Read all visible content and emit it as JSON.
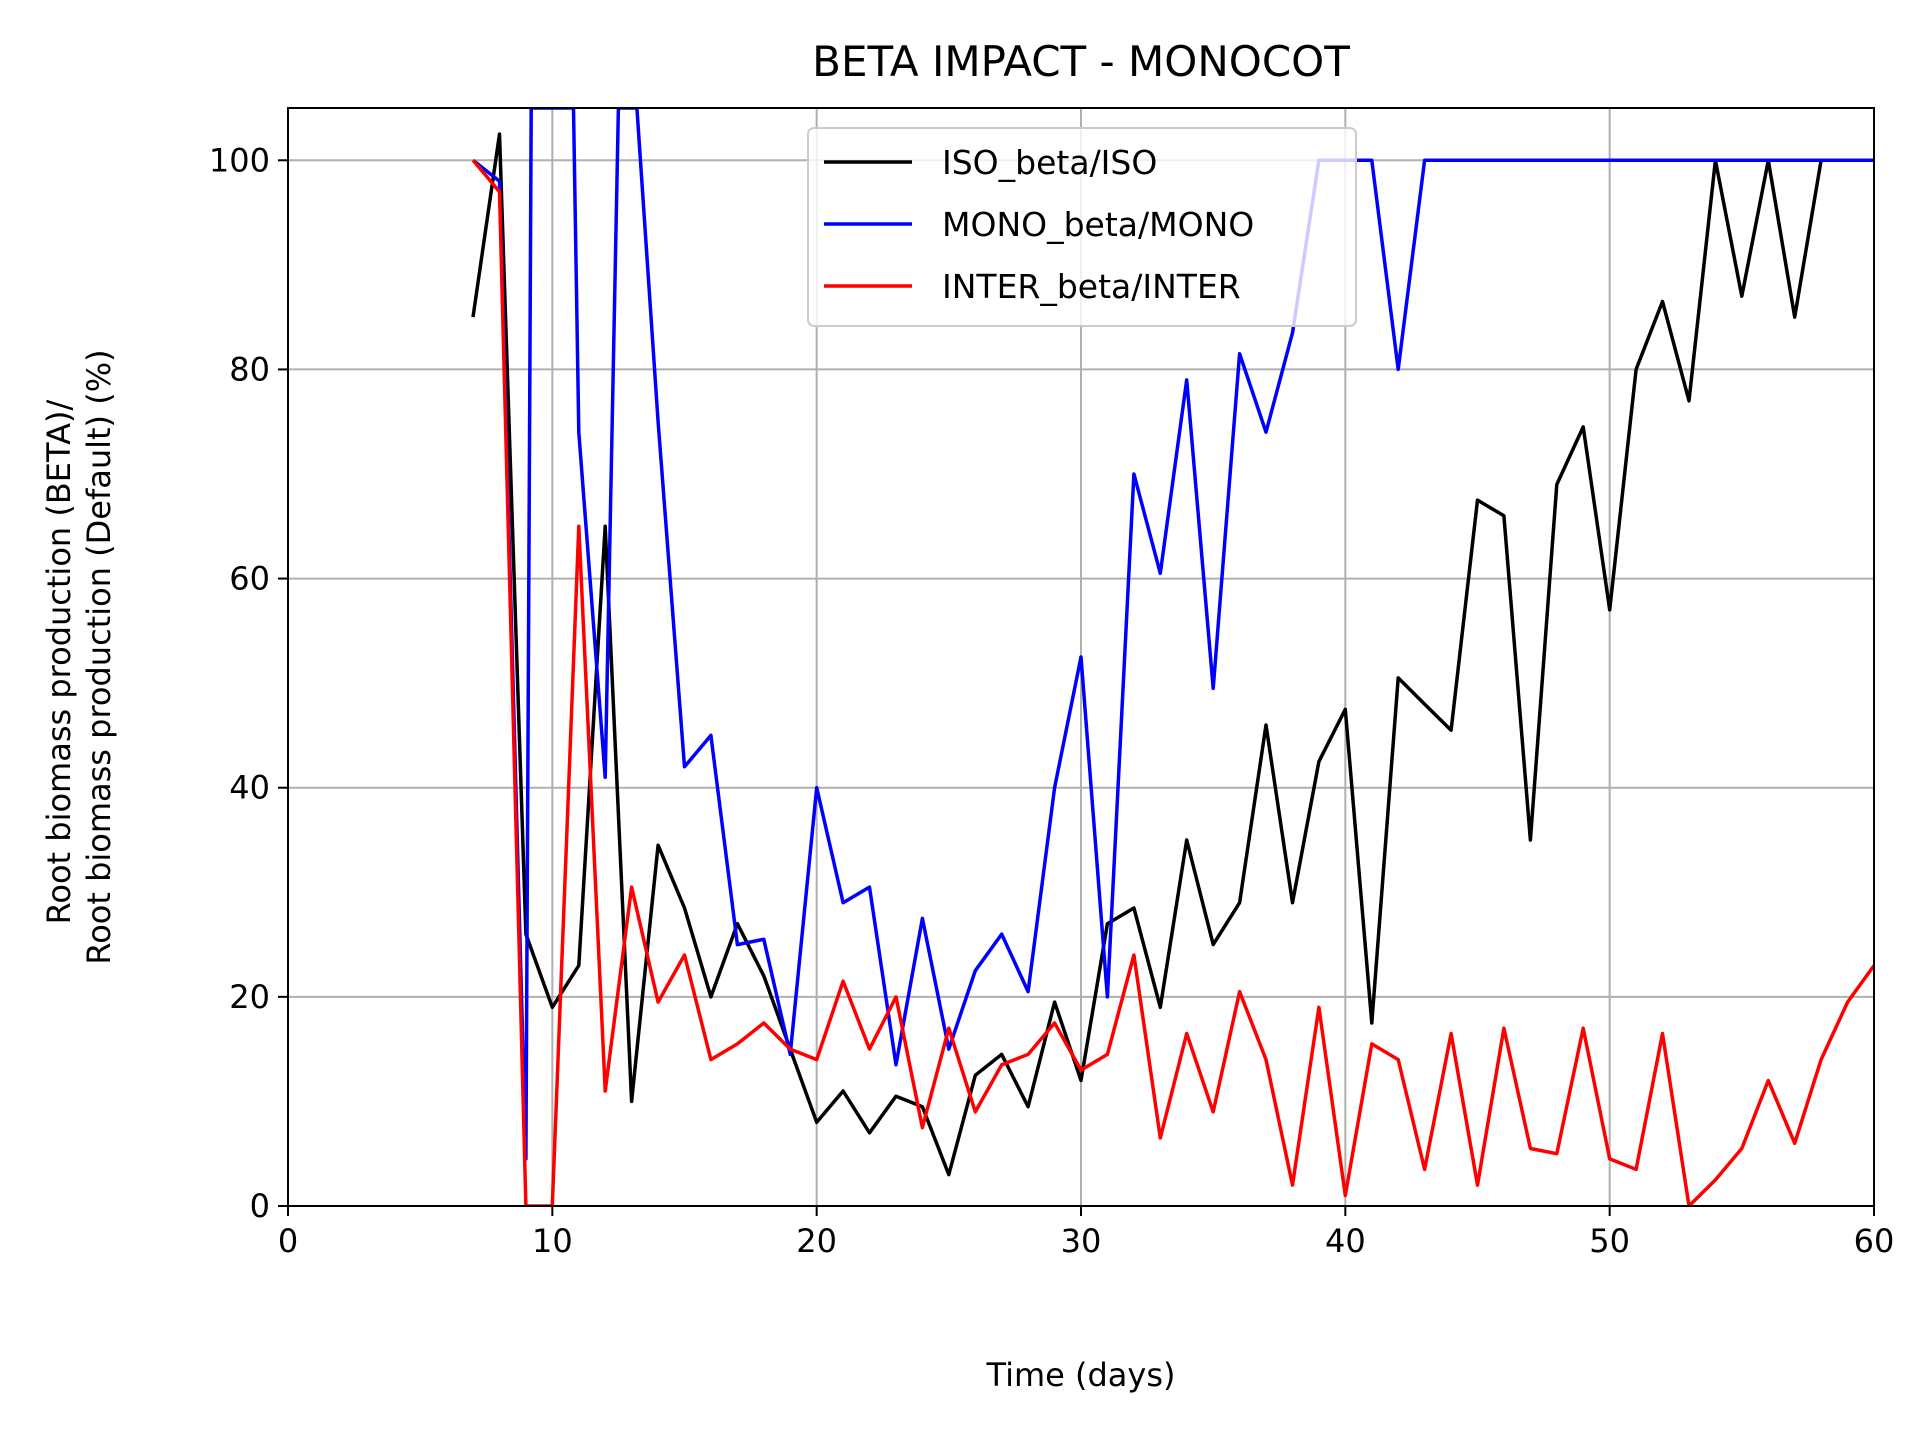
{
  "chart_data": {
    "type": "line",
    "title": "BETA IMPACT - MONOCOT",
    "xlabel": "Time (days)",
    "ylabel_lines": [
      "Root biomass production (BETA)/",
      "Root biomass production (Default) (%)"
    ],
    "xlim": [
      0,
      60
    ],
    "ylim": [
      0,
      105
    ],
    "xticks": [
      0,
      10,
      20,
      30,
      40,
      50,
      60
    ],
    "yticks": [
      0,
      20,
      40,
      60,
      80,
      100
    ],
    "grid": true,
    "legend_position": "top-center",
    "series": [
      {
        "name": "ISO_beta/ISO",
        "color": "#000000",
        "x": [
          7,
          8,
          9,
          10,
          11,
          12,
          13,
          14,
          15,
          16,
          17,
          18,
          19,
          20,
          21,
          22,
          23,
          24,
          25,
          26,
          27,
          28,
          29,
          30,
          31,
          32,
          33,
          34,
          35,
          36,
          37,
          38,
          39,
          40,
          41,
          42,
          43,
          44,
          45,
          46,
          47,
          48,
          49,
          50,
          51,
          52,
          53,
          54,
          55,
          56,
          57,
          58
        ],
        "y": [
          85,
          102.5,
          26,
          19,
          23,
          65,
          10,
          34.5,
          28.5,
          20,
          27,
          22,
          15,
          8,
          11,
          7,
          10.5,
          9.5,
          3,
          12.5,
          14.5,
          9.5,
          19.5,
          12,
          27,
          28.5,
          19,
          35,
          25,
          29,
          46,
          29,
          42.5,
          47.5,
          17.5,
          50.5,
          48,
          45.5,
          67.5,
          66,
          35,
          69,
          74.5,
          57,
          80,
          86.5,
          77,
          100,
          87,
          100,
          85,
          100
        ]
      },
      {
        "name": "MONO_beta/MONO",
        "color": "#0000ff",
        "x": [
          7,
          8,
          9,
          9.2,
          10.8,
          11,
          12,
          12.5,
          13,
          13.2,
          14,
          15,
          16,
          17,
          18,
          19,
          20,
          21,
          22,
          23,
          24,
          25,
          26,
          27,
          28,
          29,
          30,
          31,
          32,
          33,
          34,
          35,
          36,
          37,
          38,
          39,
          40,
          41,
          42,
          43,
          44,
          45,
          46,
          47,
          48,
          49,
          50,
          51,
          52,
          53,
          54,
          55,
          56,
          57,
          58,
          59,
          60
        ],
        "y": [
          100,
          98,
          4.5,
          105,
          105,
          74,
          41,
          105,
          105,
          105,
          75,
          42,
          45,
          25,
          25.5,
          14.5,
          40,
          29,
          30.5,
          13.5,
          27.5,
          15,
          22.5,
          26,
          20.5,
          40,
          52.5,
          20,
          70,
          60.5,
          79,
          49.5,
          81.5,
          74,
          83.5,
          100,
          100,
          100,
          80,
          100,
          100,
          100,
          100,
          100,
          100,
          100,
          100,
          100,
          100,
          100,
          100,
          100,
          100,
          100,
          100,
          100,
          100
        ]
      },
      {
        "name": "INTER_beta/INTER",
        "color": "#ff0000",
        "x": [
          7,
          8,
          9,
          10,
          11,
          12,
          13,
          14,
          15,
          16,
          17,
          18,
          19,
          20,
          21,
          22,
          23,
          24,
          25,
          26,
          27,
          28,
          29,
          30,
          31,
          32,
          33,
          34,
          35,
          36,
          37,
          38,
          39,
          40,
          41,
          42,
          43,
          44,
          45,
          46,
          47,
          48,
          49,
          50,
          51,
          52,
          53,
          54,
          55,
          56,
          57,
          58,
          59,
          60
        ],
        "y": [
          100,
          97,
          0,
          0,
          65,
          11,
          30.5,
          19.5,
          24,
          14,
          15.5,
          17.5,
          15,
          14,
          21.5,
          15,
          20,
          7.5,
          17,
          9,
          13.5,
          14.5,
          17.5,
          13,
          14.5,
          24,
          6.5,
          16.5,
          9,
          20.5,
          14,
          2,
          19,
          1,
          15.5,
          14,
          3.5,
          16.5,
          2,
          17,
          5.5,
          5,
          17,
          4.5,
          3.5,
          16.5,
          0,
          2.5,
          5.5,
          12,
          6,
          14,
          19.5,
          23
        ]
      }
    ]
  }
}
